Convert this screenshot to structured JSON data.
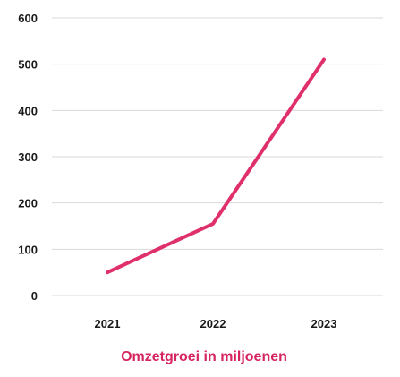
{
  "chart_data": {
    "type": "line",
    "title": "Omzetgroei in miljoenen",
    "xlabel": "",
    "ylabel": "",
    "categories": [
      "2021",
      "2022",
      "2023"
    ],
    "series": [
      {
        "values": [
          50,
          155,
          510
        ]
      }
    ],
    "ylim": [
      0,
      600
    ],
    "yticks": [
      "0",
      "100",
      "200",
      "300",
      "400",
      "500",
      "600"
    ],
    "grid": true,
    "legend": "none",
    "colors": {
      "line": "#e0306b",
      "title": "#d6245f",
      "grid": "#d9d9d9"
    }
  }
}
